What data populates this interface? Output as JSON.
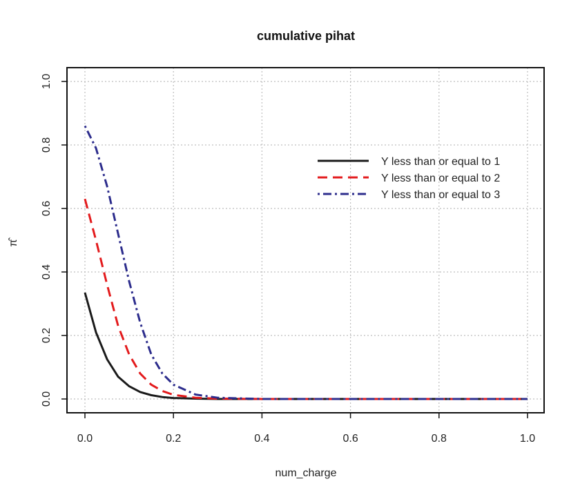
{
  "chart_data": {
    "type": "line",
    "title": "cumulative pihat",
    "xlabel": "num_charge",
    "ylabel": "π̂",
    "xlim": [
      0.0,
      1.0
    ],
    "ylim": [
      0.0,
      1.0
    ],
    "x_ticks": [
      "0.0",
      "0.2",
      "0.4",
      "0.6",
      "0.8",
      "1.0"
    ],
    "y_ticks": [
      "0.0",
      "0.2",
      "0.4",
      "0.6",
      "0.8",
      "1.0"
    ],
    "grid": true,
    "legend_position": "top-right",
    "x": [
      0.0,
      0.025,
      0.05,
      0.075,
      0.1,
      0.125,
      0.15,
      0.175,
      0.2,
      0.25,
      0.3,
      0.4,
      0.5,
      0.6,
      0.7,
      0.8,
      0.9,
      1.0
    ],
    "series": [
      {
        "name": "Y less than or equal to 1",
        "color": "#1a1a1a",
        "dash": "solid",
        "values": [
          0.335,
          0.21,
          0.125,
          0.07,
          0.04,
          0.022,
          0.012,
          0.006,
          0.003,
          0.001,
          0.0,
          0.0,
          0.0,
          0.0,
          0.0,
          0.0,
          0.0,
          0.0
        ]
      },
      {
        "name": "Y less than or equal to 2",
        "color": "#e31a1c",
        "dash": "dashed",
        "values": [
          0.63,
          0.5,
          0.36,
          0.23,
          0.14,
          0.08,
          0.045,
          0.025,
          0.013,
          0.004,
          0.001,
          0.0,
          0.0,
          0.0,
          0.0,
          0.0,
          0.0,
          0.0
        ]
      },
      {
        "name": "Y less than or equal to 3",
        "color": "#2c2c8c",
        "dash": "dotdash",
        "values": [
          0.86,
          0.79,
          0.67,
          0.52,
          0.37,
          0.24,
          0.14,
          0.08,
          0.045,
          0.014,
          0.004,
          0.0,
          0.0,
          0.0,
          0.0,
          0.0,
          0.0,
          0.0
        ]
      }
    ]
  }
}
